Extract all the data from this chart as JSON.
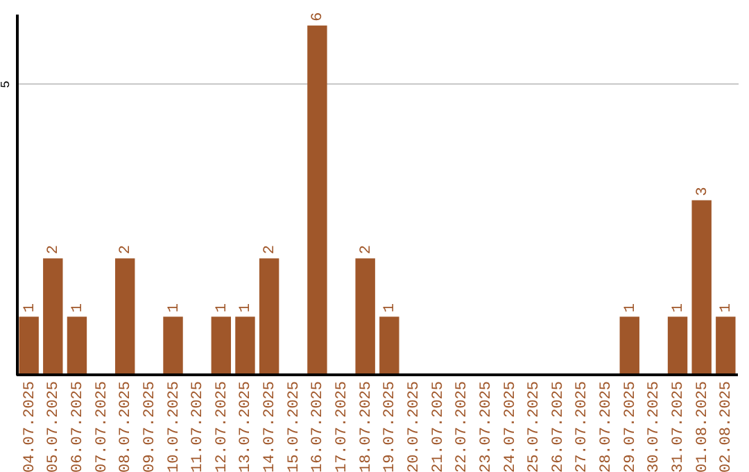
{
  "chart_data": {
    "type": "bar",
    "categories": [
      "04.07.2025",
      "05.07.2025",
      "06.07.2025",
      "07.07.2025",
      "08.07.2025",
      "09.07.2025",
      "10.07.2025",
      "11.07.2025",
      "12.07.2025",
      "13.07.2025",
      "14.07.2025",
      "15.07.2025",
      "16.07.2025",
      "17.07.2025",
      "18.07.2025",
      "19.07.2025",
      "20.07.2025",
      "21.07.2025",
      "22.07.2025",
      "23.07.2025",
      "24.07.2025",
      "25.07.2025",
      "26.07.2025",
      "27.07.2025",
      "28.07.2025",
      "29.07.2025",
      "30.07.2025",
      "31.07.2025",
      "01.08.2025",
      "02.08.2025"
    ],
    "values": [
      1,
      2,
      1,
      0,
      2,
      0,
      1,
      0,
      1,
      1,
      2,
      0,
      6,
      0,
      2,
      1,
      0,
      0,
      0,
      0,
      0,
      0,
      0,
      0,
      0,
      1,
      0,
      1,
      3,
      1
    ],
    "value_labels": [
      "1",
      "2",
      "1",
      null,
      "2",
      null,
      "1",
      null,
      "1",
      "1",
      "2",
      null,
      "6",
      null,
      "2",
      "1",
      null,
      null,
      null,
      null,
      null,
      null,
      null,
      null,
      null,
      "1",
      null,
      "1",
      "3",
      "1"
    ],
    "color": "#a0572a",
    "ylim": [
      0,
      6.2
    ],
    "yticks": [
      5
    ],
    "grid": "y"
  }
}
